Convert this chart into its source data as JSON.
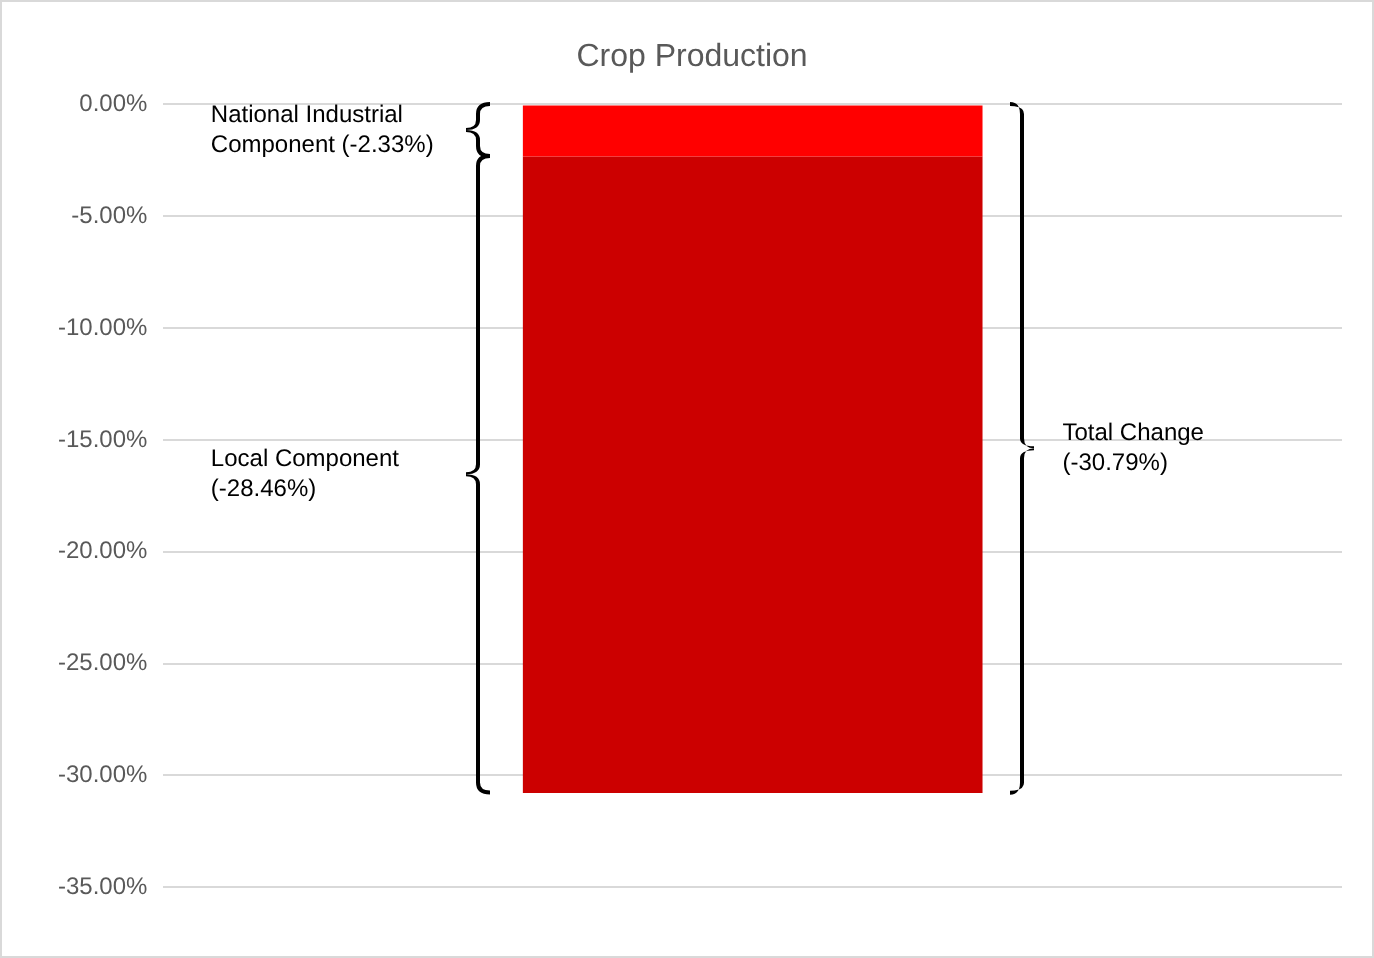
{
  "chart_data": {
    "type": "bar",
    "title": "Crop Production",
    "categories": [
      null
    ],
    "stacked": true,
    "series": [
      {
        "color": "#ff0000",
        "values": [
          -2.33
        ]
      },
      {
        "color": "#cc0000",
        "values": [
          -28.46
        ]
      }
    ],
    "ylim": [
      -35,
      0
    ],
    "yticks": [
      {
        "value": -35,
        "label": "-35.00%"
      },
      {
        "value": -30,
        "label": "-30.00%"
      },
      {
        "value": -25,
        "label": "-25.00%"
      },
      {
        "value": -20,
        "label": "-20.00%"
      },
      {
        "value": -15,
        "label": "-15.00%"
      },
      {
        "value": -10,
        "label": "-10.00%"
      },
      {
        "value": -5,
        "label": "-5.00%"
      },
      {
        "value": 0,
        "label": "0.00%"
      }
    ],
    "grid": "y",
    "legend": false,
    "annotations": [
      "National Industrial Component (-2.33%)",
      "Local Component (-28.46%)",
      "Total Change (-30.79%)"
    ]
  }
}
